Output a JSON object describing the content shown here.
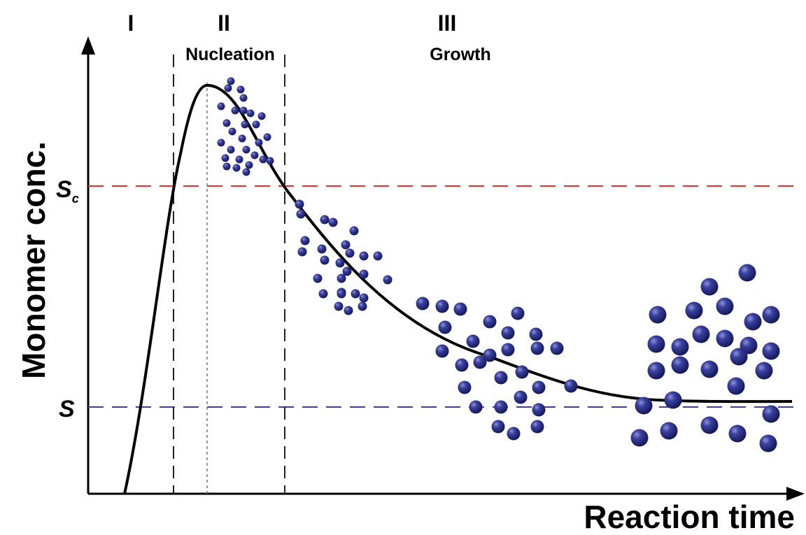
{
  "diagram": {
    "y_axis_label": "Monomer conc.",
    "x_axis_label": "Reaction time",
    "stages": [
      {
        "numeral": "I",
        "name": ""
      },
      {
        "numeral": "II",
        "name": "Nucleation"
      },
      {
        "numeral": "III",
        "name": "Growth"
      }
    ],
    "levels": {
      "critical": {
        "symbol": "S",
        "subscript": "c",
        "color": "#e0302f"
      },
      "saturation": {
        "symbol": "S",
        "color": "#3d3f9e"
      }
    },
    "colors": {
      "curve": "#000000",
      "particle": "#1f2470",
      "particle_highlight": "#8e93d8",
      "guide": "#333333"
    }
  }
}
